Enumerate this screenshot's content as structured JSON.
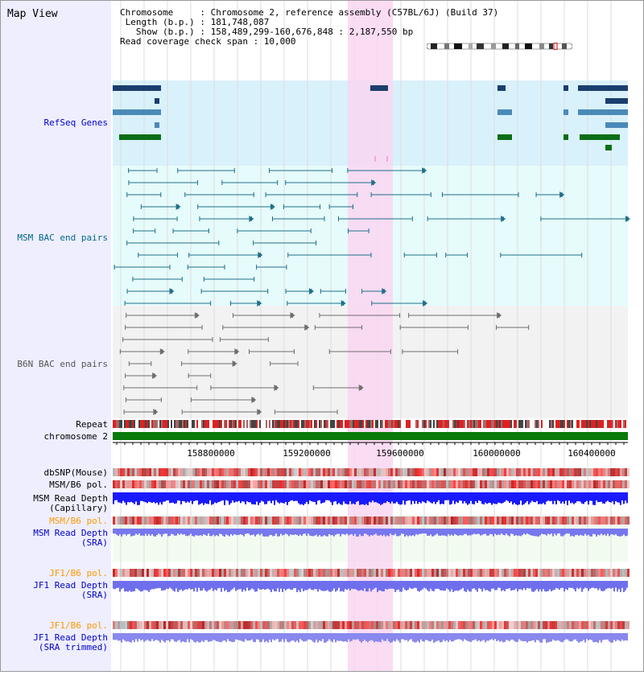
{
  "title": "Map View",
  "info": {
    "line1": "Chromosome     : Chromosome 2, reference assembly (C57BL/6J) (Build 37)",
    "line2": " Length (b.p.) : 181,748,087",
    "line3": "   Show (b.p.) : 158,489,299-160,676,848 : 2,187,550 bp",
    "line4": "Read coverage check span : 10,000"
  },
  "tracks": {
    "refseq": "RefSeq Genes",
    "msm_bac": "MSM BAC end pairs",
    "b6n_bac": "B6N BAC end pairs",
    "repeat": "Repeat",
    "chromosome": "chromosome 2",
    "dbsnp": "dbSNP(Mouse)",
    "msm_b6_pol_1": "MSM/B6 pol.",
    "msm_depth_cap_1": "MSM Read Depth",
    "msm_depth_cap_2": "(Capillary)",
    "msm_b6_pol_2": "MSM/B6 pol.",
    "msm_depth_sra_1": "MSM Read Depth",
    "msm_depth_sra_2": "(SRA)",
    "jf1_b6_pol_1": "JF1/B6 pol.",
    "jf1_depth_sra_1": "JF1 Read Depth",
    "jf1_depth_sra_2": "(SRA)",
    "jf1_b6_pol_2": "JF1/B6 pol.",
    "jf1_depth_trim_1": "JF1 Read Depth",
    "jf1_depth_trim_2": "(SRA trimmed)"
  },
  "axis": {
    "ticks": [
      "158800000",
      "159200000",
      "159600000",
      "160000000",
      "160400000"
    ]
  },
  "colors": {
    "refseq_label": "#0000cc",
    "msm_label": "#006688",
    "b6n_label": "#555555",
    "pol_orange": "#ff9900",
    "depth_blue": "#0000cc",
    "highlight": "#f9d6f1",
    "refseq_bg": "#d9f1fb",
    "bac_bg": "#e6fbfb"
  }
}
